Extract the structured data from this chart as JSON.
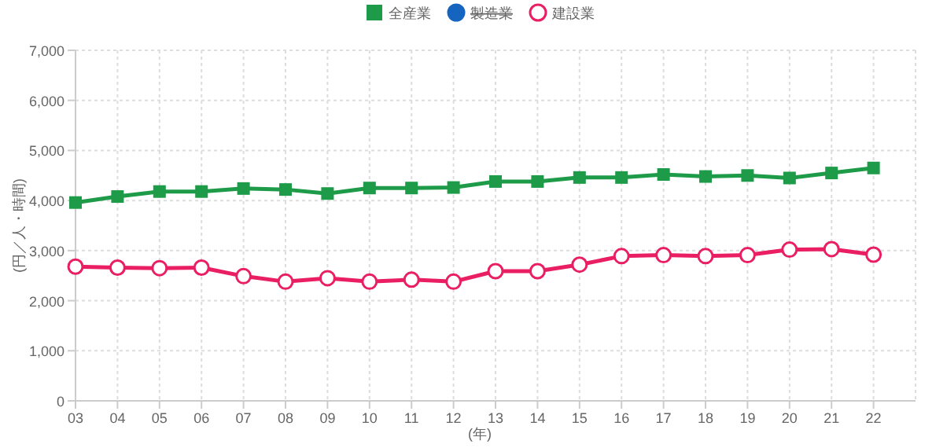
{
  "chart_data": {
    "type": "line",
    "xlabel": "(年)",
    "ylabel": "(円／人・時間)",
    "categories": [
      "03",
      "04",
      "05",
      "06",
      "07",
      "08",
      "09",
      "10",
      "11",
      "12",
      "13",
      "14",
      "15",
      "16",
      "17",
      "18",
      "19",
      "20",
      "21",
      "22"
    ],
    "series": [
      {
        "name": "全産業",
        "color": "#1e9b48",
        "marker": "square",
        "values": [
          3960,
          4080,
          4180,
          4180,
          4240,
          4220,
          4140,
          4250,
          4250,
          4260,
          4380,
          4380,
          4460,
          4460,
          4520,
          4480,
          4500,
          4450,
          4550,
          4650
        ]
      },
      {
        "name": "製造業",
        "color": "#1565c0",
        "marker": "circle",
        "values": [
          null,
          null,
          null,
          null,
          null,
          null,
          null,
          null,
          null,
          null,
          null,
          null,
          null,
          null,
          null,
          null,
          null,
          null,
          null,
          null
        ]
      },
      {
        "name": "建設業",
        "color": "#e91e63",
        "marker": "circle",
        "values": [
          2680,
          2660,
          2650,
          2660,
          2490,
          2380,
          2450,
          2380,
          2420,
          2380,
          2590,
          2590,
          2720,
          2890,
          2910,
          2890,
          2910,
          3020,
          3030,
          2920
        ]
      }
    ],
    "ylim": [
      0,
      7000
    ],
    "yticks": [
      {
        "value": 0,
        "label": "0"
      },
      {
        "value": 1000,
        "label": "1,000"
      },
      {
        "value": 2000,
        "label": "2,000"
      },
      {
        "value": 3000,
        "label": "3,000"
      },
      {
        "value": 4000,
        "label": "4,000"
      },
      {
        "value": 5000,
        "label": "5,000"
      },
      {
        "value": 6000,
        "label": "6,000"
      },
      {
        "value": 7000,
        "label": "7,000"
      }
    ],
    "grid": true,
    "legend": "top",
    "line_style": "solid"
  }
}
